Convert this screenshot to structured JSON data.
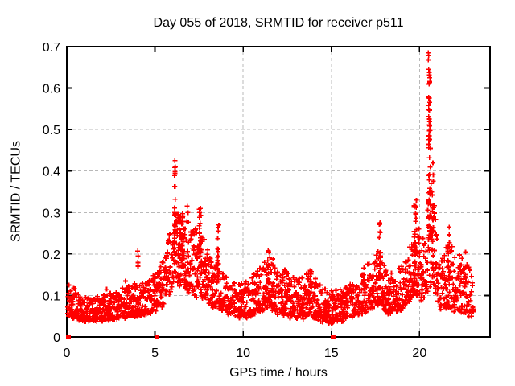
{
  "chart_data": {
    "type": "scatter",
    "title": "Day 055 of 2018, SRMTID for receiver p511",
    "xlabel": "GPS time / hours",
    "ylabel": "SRMTID / TECUs",
    "xlim": [
      0,
      24
    ],
    "ylim": [
      0,
      0.7
    ],
    "xticks": [
      0,
      5,
      10,
      15,
      20
    ],
    "xtick_labels": [
      "0",
      "5",
      "10",
      "15",
      "20"
    ],
    "yticks": [
      0,
      0.1,
      0.2,
      0.3,
      0.4,
      0.5,
      0.6,
      0.7
    ],
    "ytick_labels": [
      "0",
      "0.1",
      "0.2",
      "0.3",
      "0.4",
      "0.5",
      "0.6",
      "0.7"
    ],
    "grid": true,
    "legend": false,
    "marker": "plus",
    "marker_color": "#ff0000",
    "background_color": "#ffffff",
    "grid_color": "#b8b8b8",
    "seed": 55,
    "epoch_step_hours": 0.05,
    "t_start": 0.05,
    "t_end": 23.05,
    "envelope": [
      [
        0.0,
        0.05,
        0.13
      ],
      [
        0.3,
        0.05,
        0.12
      ],
      [
        0.8,
        0.04,
        0.1
      ],
      [
        1.5,
        0.04,
        0.095
      ],
      [
        2.2,
        0.04,
        0.115
      ],
      [
        3.0,
        0.045,
        0.11
      ],
      [
        3.5,
        0.05,
        0.125
      ],
      [
        4.2,
        0.05,
        0.13
      ],
      [
        4.8,
        0.06,
        0.15
      ],
      [
        5.3,
        0.07,
        0.17
      ],
      [
        5.7,
        0.09,
        0.22
      ],
      [
        6.0,
        0.12,
        0.3
      ],
      [
        6.15,
        0.14,
        0.38
      ],
      [
        6.35,
        0.12,
        0.3
      ],
      [
        6.8,
        0.11,
        0.3
      ],
      [
        7.2,
        0.1,
        0.25
      ],
      [
        7.55,
        0.1,
        0.29
      ],
      [
        7.9,
        0.09,
        0.22
      ],
      [
        8.3,
        0.07,
        0.17
      ],
      [
        8.6,
        0.07,
        0.2
      ],
      [
        9.0,
        0.06,
        0.15
      ],
      [
        9.6,
        0.05,
        0.13
      ],
      [
        10.2,
        0.05,
        0.13
      ],
      [
        10.8,
        0.06,
        0.16
      ],
      [
        11.4,
        0.07,
        0.19
      ],
      [
        11.9,
        0.06,
        0.19
      ],
      [
        12.4,
        0.05,
        0.16
      ],
      [
        13.0,
        0.045,
        0.14
      ],
      [
        13.8,
        0.05,
        0.16
      ],
      [
        14.4,
        0.04,
        0.13
      ],
      [
        15.0,
        0.035,
        0.11
      ],
      [
        15.6,
        0.04,
        0.12
      ],
      [
        16.2,
        0.05,
        0.13
      ],
      [
        16.8,
        0.06,
        0.16
      ],
      [
        17.3,
        0.07,
        0.19
      ],
      [
        17.7,
        0.08,
        0.22
      ],
      [
        18.1,
        0.06,
        0.16
      ],
      [
        18.6,
        0.06,
        0.15
      ],
      [
        19.1,
        0.07,
        0.18
      ],
      [
        19.5,
        0.09,
        0.24
      ],
      [
        19.8,
        0.1,
        0.29
      ],
      [
        20.1,
        0.09,
        0.24
      ],
      [
        20.45,
        0.11,
        0.32
      ],
      [
        20.65,
        0.13,
        0.38
      ],
      [
        20.9,
        0.1,
        0.3
      ],
      [
        21.2,
        0.07,
        0.22
      ],
      [
        21.6,
        0.07,
        0.24
      ],
      [
        22.0,
        0.06,
        0.2
      ],
      [
        22.5,
        0.06,
        0.2
      ],
      [
        22.9,
        0.05,
        0.16
      ],
      [
        23.1,
        0.06,
        0.14
      ]
    ],
    "spikes": [
      {
        "t": 4.03,
        "w": 0.05,
        "ylo": 0.17,
        "yhi": 0.215,
        "n": 3
      },
      {
        "t": 6.12,
        "w": 0.06,
        "ylo": 0.2,
        "yhi": 0.42,
        "n": 28
      },
      {
        "t": 6.45,
        "w": 0.3,
        "ylo": 0.15,
        "yhi": 0.3,
        "n": 30
      },
      {
        "t": 7.6,
        "w": 0.2,
        "ylo": 0.15,
        "yhi": 0.31,
        "n": 24
      },
      {
        "t": 8.55,
        "w": 0.08,
        "ylo": 0.14,
        "yhi": 0.265,
        "n": 12
      },
      {
        "t": 11.45,
        "w": 0.12,
        "ylo": 0.13,
        "yhi": 0.21,
        "n": 10
      },
      {
        "t": 13.85,
        "w": 0.1,
        "ylo": 0.1,
        "yhi": 0.17,
        "n": 8
      },
      {
        "t": 17.75,
        "w": 0.08,
        "ylo": 0.14,
        "yhi": 0.28,
        "n": 14
      },
      {
        "t": 19.75,
        "w": 0.15,
        "ylo": 0.12,
        "yhi": 0.33,
        "n": 26
      },
      {
        "t": 20.55,
        "w": 0.08,
        "ylo": 0.22,
        "yhi": 0.66,
        "n": 40
      },
      {
        "t": 20.75,
        "w": 0.07,
        "ylo": 0.14,
        "yhi": 0.44,
        "n": 16
      },
      {
        "t": 21.65,
        "w": 0.09,
        "ylo": 0.1,
        "yhi": 0.27,
        "n": 10
      },
      {
        "t": 22.6,
        "w": 0.07,
        "ylo": 0.1,
        "yhi": 0.21,
        "n": 7
      }
    ],
    "extra_points": [
      [
        6.13,
        0.425
      ],
      [
        6.15,
        0.41
      ],
      [
        6.11,
        0.39
      ],
      [
        6.35,
        0.295
      ],
      [
        6.83,
        0.315
      ],
      [
        6.87,
        0.3
      ],
      [
        7.58,
        0.31
      ],
      [
        7.52,
        0.3
      ],
      [
        8.62,
        0.27
      ],
      [
        8.59,
        0.255
      ],
      [
        11.46,
        0.205
      ],
      [
        17.76,
        0.275
      ],
      [
        19.82,
        0.33
      ],
      [
        19.78,
        0.315
      ],
      [
        20.5,
        0.685
      ],
      [
        20.52,
        0.678
      ],
      [
        20.49,
        0.668
      ],
      [
        20.54,
        0.61
      ],
      [
        20.52,
        0.578
      ],
      [
        20.57,
        0.547
      ],
      [
        20.55,
        0.52
      ],
      [
        20.6,
        0.498
      ],
      [
        20.58,
        0.476
      ],
      [
        20.62,
        0.455
      ],
      [
        20.56,
        0.432
      ],
      [
        20.61,
        0.41
      ],
      [
        20.53,
        0.39
      ],
      [
        20.66,
        0.37
      ],
      [
        20.7,
        0.35
      ],
      [
        4.02,
        0.207
      ],
      [
        4.03,
        0.18
      ],
      [
        21.68,
        0.265
      ],
      [
        22.61,
        0.205
      ],
      [
        0.12,
        0.125
      ],
      [
        3.32,
        0.135
      ]
    ],
    "zero_epoch_points_x": [
      0.1,
      5.1,
      15.1
    ]
  }
}
